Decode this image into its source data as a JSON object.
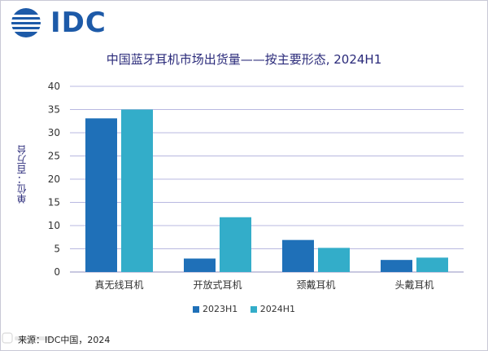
{
  "brand": {
    "logo_text": "IDC",
    "logo_color": "#1d5aa8"
  },
  "chart_data": {
    "type": "bar",
    "title": "中国蓝牙耳机市场出货量——按主要形态, 2024H1",
    "ylabel": "单位：百万台",
    "xlabel": "",
    "categories": [
      "真无线耳机",
      "开放式耳机",
      "颈戴耳机",
      "头戴耳机"
    ],
    "series": [
      {
        "name": "2023H1",
        "values": [
          33.1,
          2.9,
          6.9,
          2.6
        ],
        "color": "#1f70b8"
      },
      {
        "name": "2024H1",
        "values": [
          35.0,
          11.8,
          5.2,
          3.1
        ],
        "color": "#33adc9"
      }
    ],
    "ylim": [
      0,
      40
    ],
    "yticks": [
      0,
      5,
      10,
      15,
      20,
      25,
      30,
      35,
      40
    ],
    "grid": true,
    "legend_position": "bottom"
  },
  "footer": {
    "source": "来源：IDC中国，2024"
  }
}
